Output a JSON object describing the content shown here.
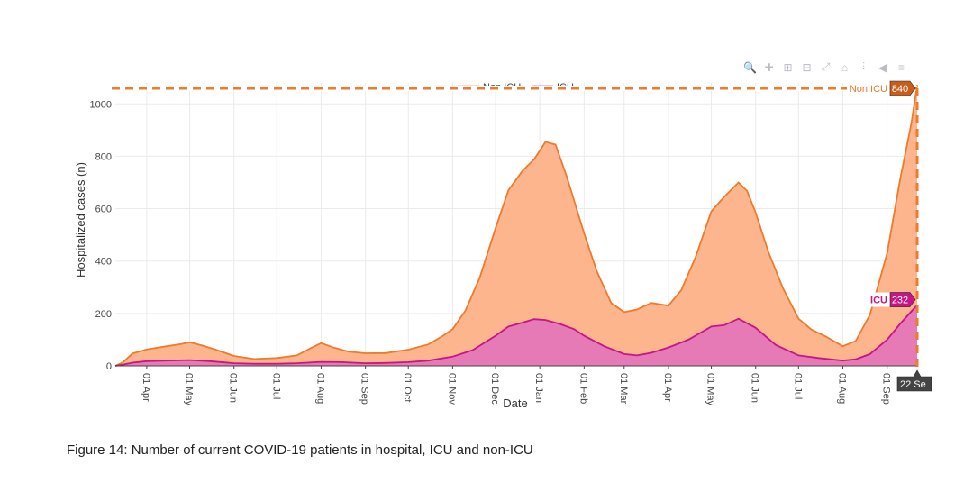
{
  "modebar": {
    "icons": [
      "zoom-icon",
      "pan-icon",
      "zoom-in-icon",
      "zoom-out-icon",
      "autoscale-icon",
      "home-icon",
      "spike-lines-icon",
      "hover-closest-icon",
      "hover-compare-icon"
    ],
    "color": "#b9bcc3"
  },
  "caption": "Figure 14: Number of current COVID-19 patients in hospital, ICU and non-ICU",
  "chart_data": {
    "type": "area",
    "stacked": true,
    "xlabel": "Date",
    "ylabel": "Hospitalized cases (n)",
    "ylim": [
      0,
      1080
    ],
    "yticks": [
      0,
      200,
      400,
      600,
      800,
      1000
    ],
    "xlim": [
      "2020-03-10",
      "2021-09-22"
    ],
    "xticks": [
      {
        "date": "2020-04-01",
        "label": "01 Apr"
      },
      {
        "date": "2020-05-01",
        "label": "01 May"
      },
      {
        "date": "2020-06-01",
        "label": "01 Jun"
      },
      {
        "date": "2020-07-01",
        "label": "01 Jul"
      },
      {
        "date": "2020-08-01",
        "label": "01 Aug"
      },
      {
        "date": "2020-09-01",
        "label": "01 Sep"
      },
      {
        "date": "2020-10-01",
        "label": "01 Oct"
      },
      {
        "date": "2020-11-01",
        "label": "01 Nov"
      },
      {
        "date": "2020-12-01",
        "label": "01 Dec"
      },
      {
        "date": "2021-01-01",
        "label": "01 Jan"
      },
      {
        "date": "2021-02-01",
        "label": "01 Feb"
      },
      {
        "date": "2021-03-01",
        "label": "01 Mar"
      },
      {
        "date": "2021-04-01",
        "label": "01 Apr"
      },
      {
        "date": "2021-05-01",
        "label": "01 May"
      },
      {
        "date": "2021-06-01",
        "label": "01 Jun"
      },
      {
        "date": "2021-07-01",
        "label": "01 Jul"
      },
      {
        "date": "2021-08-01",
        "label": "01 Aug"
      },
      {
        "date": "2021-09-01",
        "label": "01 Sep"
      }
    ],
    "grid": true,
    "legend_placement": "top-center",
    "series": [
      {
        "name": "Non ICU",
        "line_color": "#f07a2b",
        "fill_color": "#fcb58c",
        "points": [
          [
            "2020-03-10",
            0
          ],
          [
            "2020-03-15",
            8
          ],
          [
            "2020-03-22",
            35
          ],
          [
            "2020-04-01",
            45
          ],
          [
            "2020-04-15",
            55
          ],
          [
            "2020-04-25",
            62
          ],
          [
            "2020-05-01",
            68
          ],
          [
            "2020-05-10",
            58
          ],
          [
            "2020-05-20",
            45
          ],
          [
            "2020-06-01",
            28
          ],
          [
            "2020-06-15",
            18
          ],
          [
            "2020-07-01",
            22
          ],
          [
            "2020-07-15",
            30
          ],
          [
            "2020-07-25",
            55
          ],
          [
            "2020-08-01",
            72
          ],
          [
            "2020-08-10",
            55
          ],
          [
            "2020-08-20",
            42
          ],
          [
            "2020-09-01",
            38
          ],
          [
            "2020-09-15",
            38
          ],
          [
            "2020-10-01",
            48
          ],
          [
            "2020-10-15",
            62
          ],
          [
            "2020-10-25",
            85
          ],
          [
            "2020-11-01",
            105
          ],
          [
            "2020-11-10",
            160
          ],
          [
            "2020-11-20",
            260
          ],
          [
            "2020-12-01",
            410
          ],
          [
            "2020-12-10",
            520
          ],
          [
            "2020-12-20",
            580
          ],
          [
            "2020-12-28",
            610
          ],
          [
            "2021-01-05",
            680
          ],
          [
            "2021-01-12",
            680
          ],
          [
            "2021-01-20",
            570
          ],
          [
            "2021-02-01",
            390
          ],
          [
            "2021-02-10",
            270
          ],
          [
            "2021-02-20",
            175
          ],
          [
            "2021-03-01",
            160
          ],
          [
            "2021-03-10",
            175
          ],
          [
            "2021-03-20",
            190
          ],
          [
            "2021-04-01",
            160
          ],
          [
            "2021-04-10",
            200
          ],
          [
            "2021-04-20",
            300
          ],
          [
            "2021-05-01",
            440
          ],
          [
            "2021-05-10",
            490
          ],
          [
            "2021-05-20",
            520
          ],
          [
            "2021-05-26",
            505
          ],
          [
            "2021-06-01",
            440
          ],
          [
            "2021-06-10",
            330
          ],
          [
            "2021-06-20",
            230
          ],
          [
            "2021-07-01",
            140
          ],
          [
            "2021-07-10",
            105
          ],
          [
            "2021-07-20",
            85
          ],
          [
            "2021-08-01",
            55
          ],
          [
            "2021-08-10",
            70
          ],
          [
            "2021-08-20",
            150
          ],
          [
            "2021-09-01",
            330
          ],
          [
            "2021-09-10",
            550
          ],
          [
            "2021-09-18",
            720
          ],
          [
            "2021-09-22",
            840
          ]
        ]
      },
      {
        "name": "ICU",
        "line_color": "#c71585",
        "fill_color": "#e57ab7",
        "points": [
          [
            "2020-03-10",
            0
          ],
          [
            "2020-03-15",
            4
          ],
          [
            "2020-03-22",
            12
          ],
          [
            "2020-04-01",
            18
          ],
          [
            "2020-04-15",
            20
          ],
          [
            "2020-05-01",
            22
          ],
          [
            "2020-05-15",
            18
          ],
          [
            "2020-06-01",
            10
          ],
          [
            "2020-06-15",
            8
          ],
          [
            "2020-07-01",
            8
          ],
          [
            "2020-07-15",
            10
          ],
          [
            "2020-08-01",
            15
          ],
          [
            "2020-08-15",
            14
          ],
          [
            "2020-09-01",
            10
          ],
          [
            "2020-09-15",
            11
          ],
          [
            "2020-10-01",
            14
          ],
          [
            "2020-10-15",
            20
          ],
          [
            "2020-11-01",
            35
          ],
          [
            "2020-11-15",
            60
          ],
          [
            "2020-12-01",
            115
          ],
          [
            "2020-12-10",
            150
          ],
          [
            "2020-12-20",
            165
          ],
          [
            "2020-12-28",
            178
          ],
          [
            "2021-01-05",
            175
          ],
          [
            "2021-01-15",
            160
          ],
          [
            "2021-01-25",
            140
          ],
          [
            "2021-02-01",
            115
          ],
          [
            "2021-02-15",
            75
          ],
          [
            "2021-03-01",
            45
          ],
          [
            "2021-03-10",
            40
          ],
          [
            "2021-03-20",
            50
          ],
          [
            "2021-04-01",
            70
          ],
          [
            "2021-04-15",
            100
          ],
          [
            "2021-05-01",
            150
          ],
          [
            "2021-05-10",
            155
          ],
          [
            "2021-05-20",
            180
          ],
          [
            "2021-06-01",
            145
          ],
          [
            "2021-06-15",
            80
          ],
          [
            "2021-07-01",
            40
          ],
          [
            "2021-07-15",
            30
          ],
          [
            "2021-08-01",
            20
          ],
          [
            "2021-08-10",
            25
          ],
          [
            "2021-08-20",
            45
          ],
          [
            "2021-09-01",
            100
          ],
          [
            "2021-09-10",
            160
          ],
          [
            "2021-09-22",
            232
          ]
        ]
      }
    ],
    "hover": {
      "date_label": "22 Se",
      "labels": [
        {
          "series": "Non ICU",
          "text": "Non ICU",
          "value": "840"
        },
        {
          "series": "ICU",
          "text": "ICU",
          "value": "232"
        }
      ]
    }
  }
}
